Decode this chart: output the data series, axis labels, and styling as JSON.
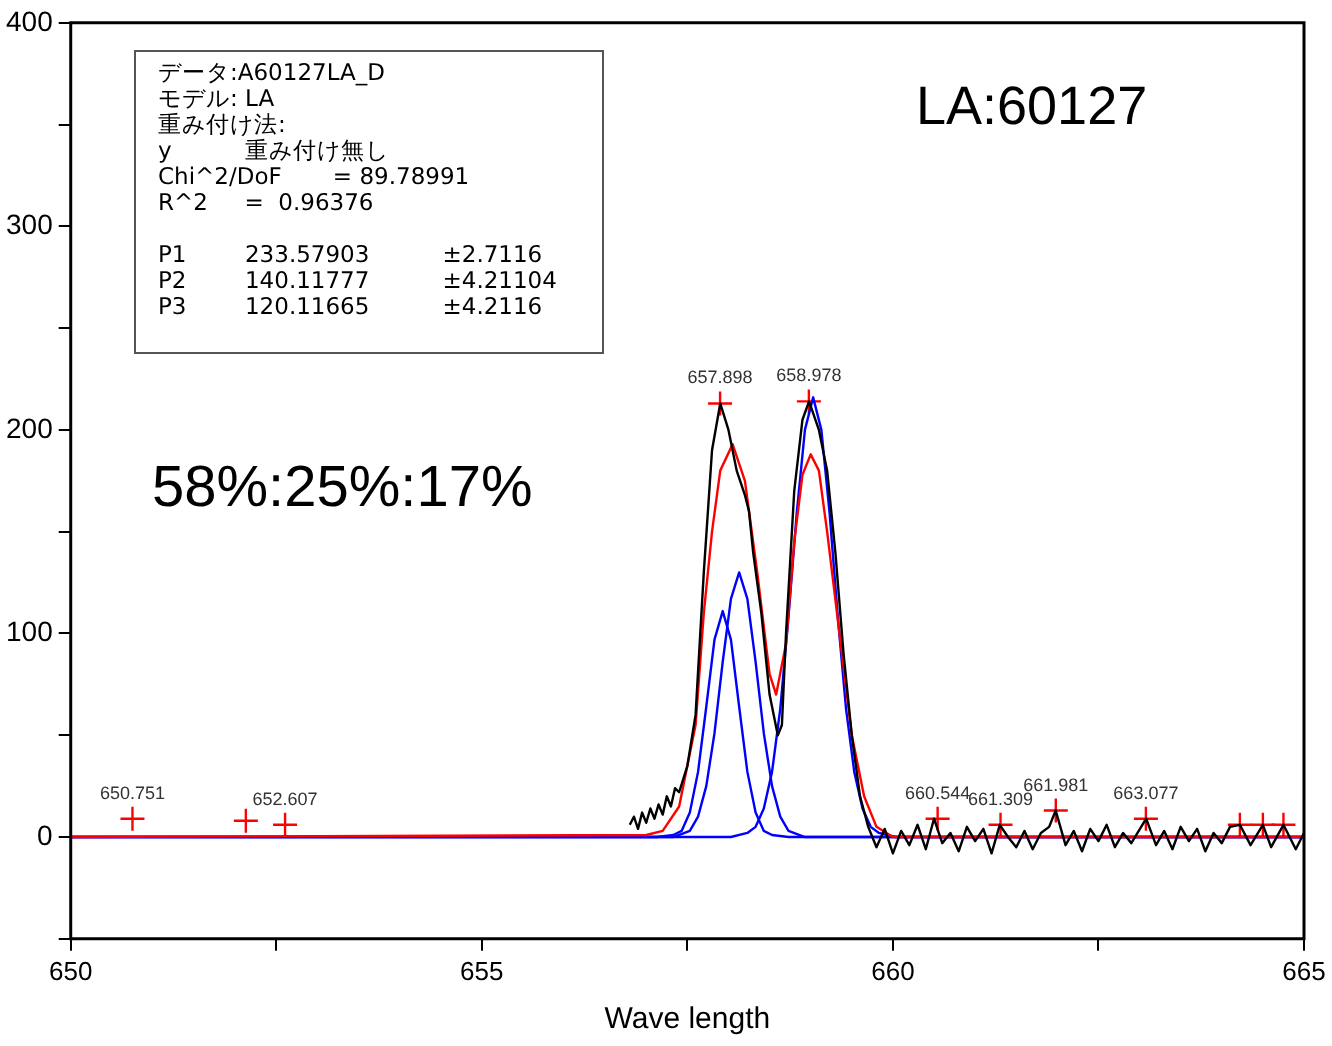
{
  "chart_data": {
    "type": "line",
    "xlabel": "Wave length",
    "xlim": [
      650,
      665
    ],
    "xticks": [
      650,
      {
        "value": 652.5,
        "label": null
      },
      655,
      {
        "value": 657.5,
        "label": null
      },
      660,
      {
        "value": 662.5,
        "label": null
      },
      665
    ],
    "ylim": [
      -50,
      400
    ],
    "yticks": [
      {
        "value": -50,
        "label": null
      },
      0,
      {
        "value": 50,
        "label": null
      },
      100,
      {
        "value": 150,
        "label": null
      },
      200,
      {
        "value": 250,
        "label": null
      },
      300,
      {
        "value": 350,
        "label": null
      },
      400
    ],
    "grid": false,
    "legend": false,
    "annotations": [
      "データ:A60127LA_D\nモデル: LA\n重み付け法:\ny          重み付け無し\nChi^2/DoF       = 89.78991\nR^2     =  0.96376\n\nP1        233.57903          ±2.7116\nP2        140.11777          ±4.21104\nP3        120.11665          ±4.2116",
      "LA:60127",
      "58%:25%:17%",
      {
        "text": "650.751",
        "x": 650.751,
        "y": 9
      },
      {
        "text": "652.607",
        "x": 652.607,
        "y": 6
      },
      {
        "text": "657.898",
        "x": 657.898,
        "y": 213
      },
      {
        "text": "658.978",
        "x": 658.978,
        "y": 214
      },
      {
        "text": "660.544",
        "x": 660.544,
        "y": 9
      },
      {
        "text": "661.309",
        "x": 661.309,
        "y": 6
      },
      {
        "text": "661.981",
        "x": 661.981,
        "y": 13
      },
      {
        "text": "663.077",
        "x": 663.077,
        "y": 9
      }
    ],
    "series": [
      {
        "color": "#000000",
        "marker": "none",
        "x": [
          656.8,
          656.85,
          656.9,
          656.95,
          657.0,
          657.05,
          657.1,
          657.15,
          657.2,
          657.25,
          657.3,
          657.35,
          657.4,
          657.5,
          657.6,
          657.7,
          657.8,
          657.9,
          658.0,
          658.1,
          658.2,
          658.25,
          658.3,
          658.4,
          658.5,
          658.6,
          658.65,
          658.7,
          658.8,
          658.9,
          658.98,
          659.1,
          659.2,
          659.3,
          659.4,
          659.5,
          659.6,
          659.7,
          659.8,
          659.9,
          660.0,
          660.1,
          660.2,
          660.3,
          660.4,
          660.5,
          660.6,
          660.7,
          660.8,
          660.9,
          661.0,
          661.1,
          661.2,
          661.3,
          661.4,
          661.5,
          661.6,
          661.7,
          661.8,
          661.9,
          661.98,
          662.1,
          662.2,
          662.3,
          662.4,
          662.5,
          662.6,
          662.7,
          662.8,
          662.9,
          663.08,
          663.2,
          663.3,
          663.4,
          663.5,
          663.6,
          663.7,
          663.8,
          663.9,
          664.0,
          664.1,
          664.22,
          664.35,
          664.5,
          664.6,
          664.75,
          664.9,
          665.0
        ],
        "values": [
          6,
          10,
          4,
          12,
          7,
          14,
          9,
          16,
          11,
          20,
          15,
          24,
          22,
          35,
          60,
          130,
          190,
          213,
          200,
          180,
          168,
          160,
          140,
          110,
          70,
          50,
          55,
          100,
          170,
          205,
          214,
          200,
          180,
          140,
          90,
          50,
          20,
          5,
          -5,
          4,
          -8,
          3,
          -4,
          6,
          -6,
          9,
          -3,
          2,
          -7,
          5,
          -2,
          4,
          -8,
          6,
          0,
          -5,
          3,
          -6,
          2,
          5,
          13,
          -4,
          3,
          -7,
          4,
          -2,
          6,
          -5,
          2,
          -3,
          9,
          -4,
          3,
          -6,
          5,
          -2,
          4,
          -7,
          2,
          -3,
          5,
          6,
          -4,
          6,
          -5,
          6,
          -6,
          2
        ]
      },
      {
        "color": "#ff0000",
        "marker": "none",
        "x": [
          650,
          657.0,
          657.2,
          657.4,
          657.6,
          657.7,
          657.8,
          657.9,
          658.05,
          658.2,
          658.35,
          658.5,
          658.58,
          658.7,
          658.8,
          658.9,
          659.0,
          659.1,
          659.2,
          659.35,
          659.5,
          659.65,
          659.8,
          660.0,
          665
        ],
        "values": [
          0,
          1,
          3,
          15,
          55,
          110,
          150,
          180,
          193,
          175,
          130,
          80,
          70,
          95,
          145,
          178,
          188,
          180,
          150,
          100,
          50,
          20,
          5,
          0,
          0
        ]
      },
      {
        "type": "line",
        "color": "#0000ff",
        "marker": "none",
        "x": [
          650,
          657.13,
          657.33,
          657.43,
          657.53,
          657.63,
          657.73,
          657.83,
          657.93,
          658.03,
          658.13,
          658.23,
          658.33,
          658.43,
          658.53,
          658.73,
          665
        ],
        "values": [
          0,
          0,
          1,
          3,
          12,
          32,
          64,
          97,
          111,
          97,
          64,
          32,
          12,
          3,
          1,
          0,
          0
        ]
      },
      {
        "type": "line",
        "color": "#0000ff",
        "marker": "none",
        "x": [
          650,
          657.33,
          657.53,
          657.63,
          657.73,
          657.83,
          657.93,
          658.03,
          658.13,
          658.23,
          658.33,
          658.43,
          658.53,
          658.63,
          658.73,
          658.93,
          665
        ],
        "values": [
          0,
          0,
          3,
          10,
          25,
          51,
          86,
          117,
          130,
          117,
          86,
          51,
          25,
          10,
          3,
          0,
          0
        ]
      },
      {
        "type": "line",
        "color": "#0000ff",
        "marker": "none",
        "x": [
          650,
          658.03,
          658.23,
          658.33,
          658.43,
          658.53,
          658.63,
          658.73,
          658.83,
          658.93,
          659.03,
          659.13,
          659.23,
          659.33,
          659.43,
          659.53,
          659.63,
          659.73,
          659.83,
          660.03,
          665
        ],
        "values": [
          0,
          0,
          2,
          5,
          14,
          32,
          63,
          108,
          159,
          200,
          216,
          200,
          159,
          108,
          63,
          32,
          14,
          5,
          2,
          0,
          0
        ]
      },
      {
        "type": "scatter",
        "color": "#ff0000",
        "marker": "cross",
        "x": [
          650.751,
          652.13,
          652.607,
          657.898,
          658.978,
          660.544,
          661.309,
          661.981,
          663.077,
          664.22,
          664.5,
          664.75
        ],
        "values": [
          9,
          8,
          6,
          213,
          214,
          9,
          6,
          13,
          9,
          6,
          6,
          6
        ]
      }
    ]
  }
}
